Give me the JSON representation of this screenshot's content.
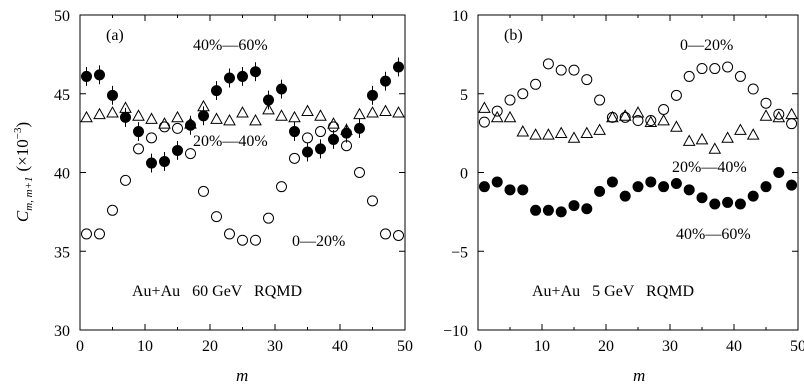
{
  "chart_data": [
    {
      "type": "scatter",
      "panel_label": "(a)",
      "annotation": "Au+Au   60 GeV   RQMD",
      "xlabel": "m",
      "ylabel": "C",
      "ylabel_sub": "m, m+1",
      "ylabel_units": "(×10",
      "ylabel_exp": "−3",
      "ylabel_close": ")",
      "xlim": [
        0,
        50
      ],
      "ylim": [
        30,
        50
      ],
      "x_ticks": [
        "0",
        "10",
        "20",
        "30",
        "40",
        "50"
      ],
      "y_ticks": [
        "30",
        "35",
        "40",
        "45",
        "50"
      ],
      "grid": false,
      "series": [
        {
          "name": "40%—60%",
          "marker": "filled-circle",
          "error_bars": true,
          "x": [
            1,
            3,
            5,
            7,
            9,
            11,
            13,
            15,
            17,
            19,
            21,
            23,
            25,
            27,
            29,
            31,
            33,
            35,
            37,
            39,
            41,
            43,
            45,
            47,
            49
          ],
          "y": [
            46.1,
            46.2,
            44.9,
            43.5,
            42.6,
            40.6,
            40.7,
            41.4,
            43.0,
            43.6,
            45.2,
            46.0,
            46.1,
            46.4,
            44.6,
            45.3,
            42.6,
            41.3,
            41.5,
            42.1,
            42.5,
            42.8,
            44.9,
            45.8,
            46.7
          ],
          "err": [
            0.6,
            0.6,
            0.6,
            0.6,
            0.6,
            0.6,
            0.6,
            0.6,
            0.6,
            0.6,
            0.6,
            0.6,
            0.6,
            0.6,
            0.6,
            0.6,
            0.6,
            0.6,
            0.6,
            0.6,
            0.6,
            0.6,
            0.6,
            0.6,
            0.6
          ]
        },
        {
          "name": "20%—40%",
          "marker": "open-triangle",
          "x": [
            1,
            3,
            5,
            7,
            9,
            11,
            13,
            15,
            17,
            19,
            21,
            23,
            25,
            27,
            29,
            31,
            33,
            35,
            37,
            39,
            41,
            43,
            45,
            47,
            49
          ],
          "y": [
            43.5,
            43.7,
            43.8,
            44.1,
            43.6,
            43.4,
            43.1,
            43.5,
            43.1,
            44.2,
            43.4,
            43.3,
            43.8,
            43.3,
            44.0,
            43.6,
            43.5,
            43.9,
            43.6,
            43.1,
            42.7,
            43.7,
            43.8,
            43.9,
            43.8
          ]
        },
        {
          "name": "0—20%",
          "marker": "open-circle",
          "x": [
            1,
            3,
            5,
            7,
            9,
            11,
            13,
            15,
            17,
            19,
            21,
            23,
            25,
            27,
            29,
            31,
            33,
            35,
            37,
            39,
            41,
            43,
            45,
            47,
            49
          ],
          "y": [
            36.1,
            36.1,
            37.6,
            39.5,
            41.5,
            42.2,
            42.9,
            42.8,
            41.2,
            38.8,
            37.2,
            36.1,
            35.7,
            35.7,
            37.1,
            39.1,
            40.9,
            42.2,
            42.6,
            42.9,
            41.7,
            40.0,
            38.2,
            36.1,
            36.0
          ]
        }
      ]
    },
    {
      "type": "scatter",
      "panel_label": "(b)",
      "annotation": "Au+Au   5 GeV   RQMD",
      "xlabel": "m",
      "xlim": [
        0,
        50
      ],
      "ylim": [
        -10,
        10
      ],
      "x_ticks": [
        "0",
        "10",
        "20",
        "30",
        "40",
        "50"
      ],
      "y_ticks": [
        "10",
        "5",
        "0",
        "−5",
        "−10"
      ],
      "grid": false,
      "series": [
        {
          "name": "0—20%",
          "marker": "open-circle",
          "x": [
            1,
            3,
            5,
            7,
            9,
            11,
            13,
            15,
            17,
            19,
            21,
            23,
            25,
            27,
            29,
            31,
            33,
            35,
            37,
            39,
            41,
            43,
            45,
            47,
            49
          ],
          "y": [
            3.2,
            3.9,
            4.6,
            5.0,
            5.6,
            6.9,
            6.5,
            6.5,
            5.9,
            4.6,
            3.5,
            3.5,
            3.3,
            3.3,
            4.0,
            4.9,
            6.1,
            6.6,
            6.6,
            6.7,
            6.1,
            5.3,
            4.4,
            3.7,
            3.1
          ]
        },
        {
          "name": "20%—40%",
          "marker": "open-triangle",
          "x": [
            1,
            3,
            5,
            7,
            9,
            11,
            13,
            15,
            17,
            19,
            21,
            23,
            25,
            27,
            29,
            31,
            33,
            35,
            37,
            39,
            41,
            43,
            45,
            47,
            49
          ],
          "y": [
            4.1,
            3.5,
            3.5,
            2.6,
            2.4,
            2.4,
            2.5,
            2.2,
            2.5,
            2.7,
            3.5,
            3.6,
            3.8,
            3.2,
            3.3,
            2.9,
            2.0,
            2.1,
            1.5,
            2.2,
            2.7,
            2.4,
            3.6,
            3.5,
            3.7
          ]
        },
        {
          "name": "40%—60%",
          "marker": "filled-circle",
          "x": [
            1,
            3,
            5,
            7,
            9,
            11,
            13,
            15,
            17,
            19,
            21,
            23,
            25,
            27,
            29,
            31,
            33,
            35,
            37,
            39,
            41,
            43,
            45,
            47,
            49
          ],
          "y": [
            -0.9,
            -0.6,
            -1.1,
            -1.1,
            -2.4,
            -2.4,
            -2.5,
            -2.1,
            -2.3,
            -1.2,
            -0.6,
            -1.5,
            -0.9,
            -0.6,
            -0.9,
            -0.7,
            -1.1,
            -1.6,
            -2.0,
            -1.9,
            -2.0,
            -1.5,
            -0.9,
            0.0,
            -0.8
          ]
        }
      ]
    }
  ]
}
